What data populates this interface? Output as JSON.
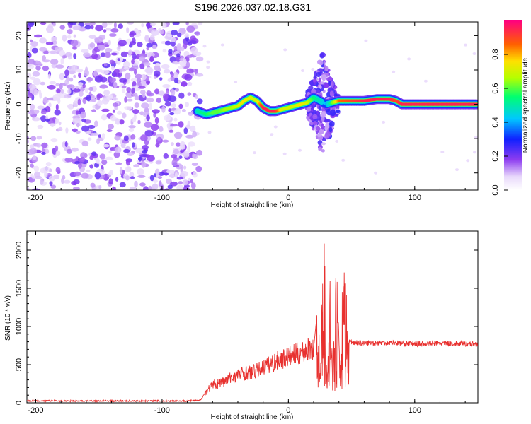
{
  "title": "S196.2026.037.02.18.G31",
  "chart_data": [
    {
      "type": "heatmap",
      "name": "spectrogram",
      "xlabel": "Height of straight line (km)",
      "ylabel": "Frequency (Hz)",
      "xlim": [
        -207,
        150
      ],
      "ylim": [
        -25,
        24
      ],
      "xticks": [
        -200,
        -100,
        0,
        100
      ],
      "yticks": [
        -20,
        -10,
        0,
        10,
        20
      ],
      "colorbar": {
        "label": "Normalized spectral amplitude",
        "range": [
          0.0,
          1.0
        ],
        "ticks": [
          0.0,
          0.2,
          0.4,
          0.6,
          0.8
        ],
        "tick_labels": [
          "0.0",
          "0.2",
          "0.4",
          "0.6",
          "0.8"
        ]
      },
      "noise_region": {
        "x_range": [
          -207,
          -70
        ],
        "y_range": [
          -25,
          24
        ],
        "amplitude": 0.1
      },
      "ridge": {
        "x": [
          -72,
          -65,
          -60,
          -55,
          -50,
          -45,
          -40,
          -35,
          -30,
          -25,
          -20,
          -15,
          -10,
          -5,
          0,
          5,
          10,
          15,
          20,
          30,
          40,
          50,
          60,
          70,
          80,
          85,
          90,
          100,
          110,
          120,
          130,
          140,
          150
        ],
        "y": [
          -2,
          -3,
          -2.5,
          -2,
          -1.5,
          -1,
          -0.5,
          1,
          2,
          1,
          -1,
          -2,
          -2,
          -1.5,
          -1,
          -0.5,
          0,
          0.5,
          2,
          0,
          1,
          1,
          1,
          1.5,
          1.5,
          1,
          0,
          0,
          0,
          0,
          0,
          0,
          0
        ],
        "amplitude": [
          0.5,
          0.55,
          0.6,
          0.6,
          0.65,
          0.65,
          0.7,
          0.75,
          0.7,
          0.7,
          0.95,
          0.95,
          0.95,
          0.7,
          0.7,
          0.7,
          0.75,
          0.7,
          0.55,
          0.4,
          0.85,
          0.9,
          0.95,
          0.95,
          0.95,
          0.9,
          0.95,
          0.95,
          0.95,
          0.95,
          0.95,
          0.95,
          0.95
        ]
      },
      "burst": {
        "x_range": [
          15,
          40
        ],
        "y_range": [
          -15,
          15
        ],
        "amplitude": 0.2
      }
    },
    {
      "type": "line",
      "name": "snr",
      "xlabel": "Height of straight line (km)",
      "ylabel": "SNR (10 * v/v)",
      "xlim": [
        -207,
        150
      ],
      "ylim": [
        0,
        2250
      ],
      "xticks": [
        -200,
        -100,
        0,
        100
      ],
      "yticks": [
        0,
        500,
        1000,
        1500,
        2000
      ],
      "series": [
        {
          "name": "SNR",
          "color": "#e8312f",
          "x": [
            -207,
            -180,
            -150,
            -120,
            -100,
            -80,
            -70,
            -65,
            -60,
            -55,
            -50,
            -45,
            -40,
            -35,
            -30,
            -25,
            -20,
            -15,
            -10,
            -5,
            0,
            5,
            10,
            15,
            20,
            22,
            25,
            28,
            31,
            33,
            35,
            38,
            41,
            44,
            47,
            48,
            60,
            80,
            100,
            120,
            150
          ],
          "values": [
            25,
            25,
            25,
            25,
            25,
            25,
            30,
            150,
            230,
            260,
            290,
            330,
            360,
            390,
            400,
            420,
            460,
            500,
            540,
            570,
            600,
            630,
            660,
            690,
            720,
            1050,
            600,
            2050,
            450,
            1450,
            250,
            1700,
            300,
            2200,
            900,
            800,
            780,
            790,
            770,
            780,
            770
          ]
        }
      ]
    }
  ]
}
